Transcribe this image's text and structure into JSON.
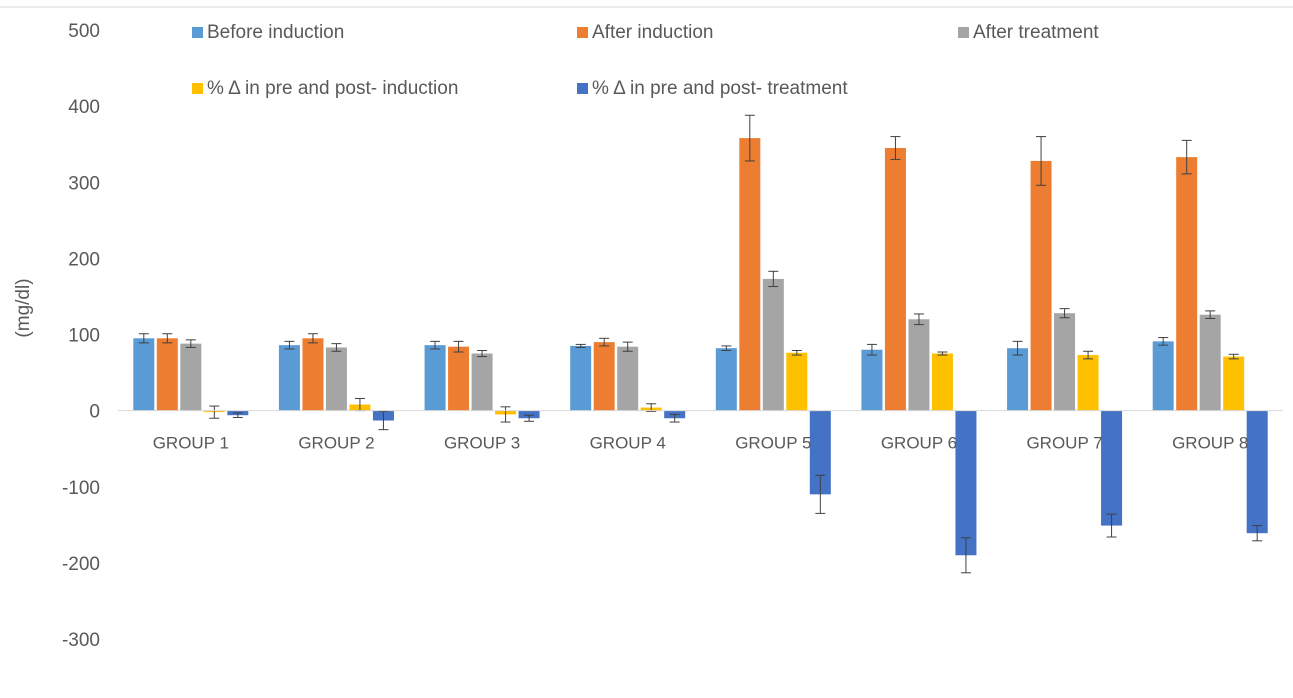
{
  "chart_data": {
    "type": "bar",
    "title": "",
    "xlabel": "",
    "ylabel": "(mg/dl)",
    "ylim": [
      -300,
      500
    ],
    "yticks": [
      500,
      400,
      300,
      200,
      100,
      0,
      -100,
      -200,
      -300
    ],
    "grid": false,
    "legend_position": "top",
    "categories": [
      "GROUP 1",
      "GROUP 2",
      "GROUP 3",
      "GROUP 4",
      "GROUP 5",
      "GROUP 6",
      "GROUP 7",
      "GROUP 8"
    ],
    "series": [
      {
        "name": "Before induction",
        "color": "#5b9bd5",
        "values": [
          95,
          86,
          86,
          85,
          82,
          80,
          82,
          91
        ],
        "errors": [
          6,
          5,
          5,
          2,
          3,
          7,
          9,
          5
        ]
      },
      {
        "name": "After induction",
        "color": "#ed7d31",
        "values": [
          95,
          95,
          84,
          90,
          358,
          345,
          328,
          333
        ],
        "errors": [
          6,
          6,
          7,
          5,
          30,
          15,
          32,
          22
        ]
      },
      {
        "name": "After treatment",
        "color": "#a5a5a5",
        "values": [
          88,
          83,
          75,
          84,
          173,
          120,
          128,
          126
        ],
        "errors": [
          5,
          5,
          4,
          6,
          10,
          7,
          6,
          5
        ]
      },
      {
        "name": "% Δ in pre and post- induction",
        "color": "#ffc000",
        "values": [
          -2,
          8,
          -5,
          4,
          76,
          75,
          73,
          71
        ],
        "errors": [
          8,
          8,
          10,
          5,
          3,
          2,
          5,
          3
        ]
      },
      {
        "name": "% Δ in pre and post- treatment",
        "color": "#4472c4",
        "values": [
          -6,
          -13,
          -10,
          -10,
          -110,
          -190,
          -151,
          -161
        ],
        "errors": [
          3,
          12,
          4,
          5,
          25,
          23,
          15,
          10
        ]
      }
    ]
  }
}
